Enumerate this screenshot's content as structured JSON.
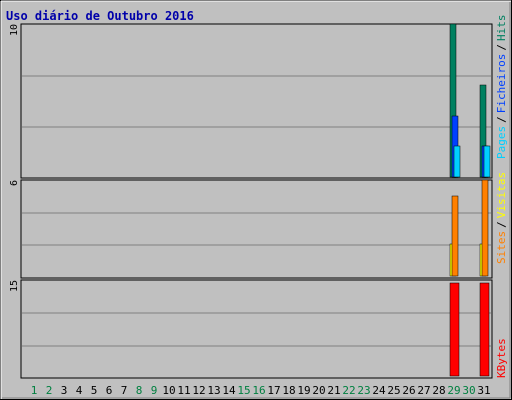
{
  "title": "Uso diário de Outubro 2016",
  "colors": {
    "background": "#c0c0c0",
    "title": "#0000aa",
    "grid": "#808080",
    "hits": "#008060",
    "files": "#0040ff",
    "pages": "#00d0ff",
    "visits": "#ffff00",
    "sites": "#ff8000",
    "kbytes": "#ff0000",
    "weekday_label": "#000000",
    "weekend_label": "#008040"
  },
  "chart_data": [
    {
      "type": "bar",
      "panel": "hits_files_pages",
      "y_max_label": "10",
      "ylim": [
        0,
        10
      ],
      "grid": true,
      "legend": {
        "pages": "Pages",
        "files": "Ficheiros",
        "hits": "Hits",
        "separator": "/"
      },
      "days": [
        29,
        31
      ],
      "series": [
        {
          "name": "Hits",
          "values": [
            10,
            6
          ]
        },
        {
          "name": "Ficheiros",
          "values": [
            4,
            2
          ]
        },
        {
          "name": "Pages",
          "values": [
            2,
            2
          ]
        }
      ]
    },
    {
      "type": "bar",
      "panel": "visits_sites",
      "y_max_label": "6",
      "ylim": [
        0,
        6
      ],
      "grid": true,
      "legend": {
        "sites": "Sites",
        "visits": "Visitas",
        "separator": "/"
      },
      "days": [
        29,
        31
      ],
      "series": [
        {
          "name": "Visitas",
          "values": [
            2,
            2
          ]
        },
        {
          "name": "Sites",
          "values": [
            5,
            6
          ]
        }
      ]
    },
    {
      "type": "bar",
      "panel": "kbytes",
      "y_max_label": "15",
      "ylim": [
        0,
        15
      ],
      "grid": true,
      "legend": {
        "kbytes": "KBytes"
      },
      "days": [
        29,
        31
      ],
      "series": [
        {
          "name": "KBytes",
          "values": [
            14.5,
            14.5
          ]
        }
      ]
    }
  ],
  "x_labels": [
    "1",
    "2",
    "3",
    "4",
    "5",
    "6",
    "7",
    "8",
    "9",
    "10",
    "11",
    "12",
    "13",
    "14",
    "15",
    "16",
    "17",
    "18",
    "19",
    "20",
    "21",
    "22",
    "23",
    "24",
    "25",
    "26",
    "27",
    "28",
    "29",
    "30",
    "31"
  ],
  "weekend_days": [
    1,
    2,
    8,
    9,
    15,
    16,
    22,
    23,
    29,
    30
  ]
}
